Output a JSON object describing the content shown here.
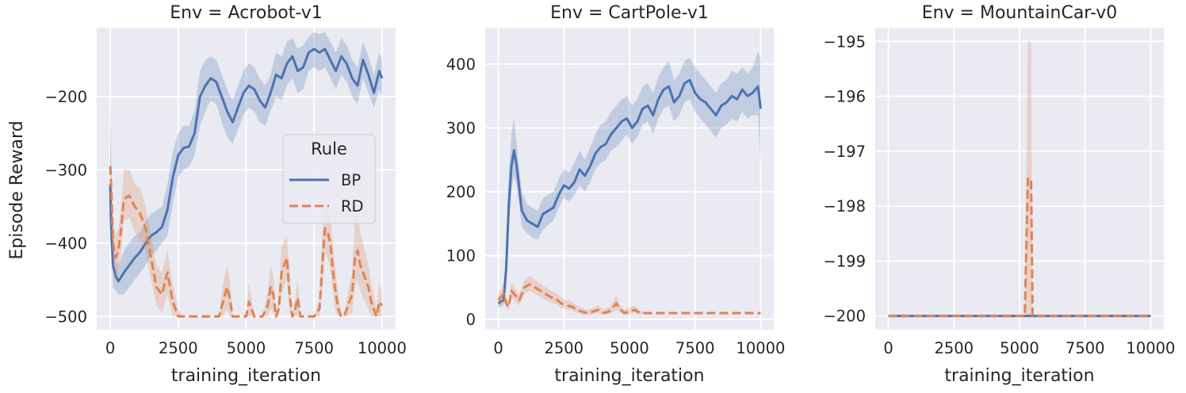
{
  "colors": {
    "panel_bg": "#EAEAF2",
    "grid": "#FFFFFF",
    "BP": "#4C72B0",
    "RD": "#DD8452"
  },
  "ylabel": "Episode Reward",
  "xlabel": "training_iteration",
  "legend": {
    "title": "Rule",
    "items": [
      "BP",
      "RD"
    ]
  },
  "chart_data": [
    {
      "type": "line",
      "title": "Env = Acrobot-v1",
      "xlabel": "training_iteration",
      "ylabel": "Episode Reward",
      "xlim": [
        -500,
        10500
      ],
      "ylim": [
        -518,
        -106
      ],
      "xticks": [
        0,
        2500,
        5000,
        7500,
        10000
      ],
      "xtick_labels": [
        "0",
        "2500",
        "5000",
        "7500",
        "10000"
      ],
      "yticks": [
        -500,
        -400,
        -300,
        -200
      ],
      "ytick_labels": [
        "−500",
        "−400",
        "−300",
        "−200"
      ],
      "legend": "center-right",
      "series": [
        {
          "name": "BP",
          "style": "solid",
          "x": [
            0,
            20,
            50,
            100,
            200,
            300,
            500,
            700,
            900,
            1100,
            1300,
            1500,
            1700,
            1900,
            2100,
            2300,
            2500,
            2700,
            2900,
            3100,
            3300,
            3500,
            3700,
            3900,
            4100,
            4300,
            4500,
            4700,
            4900,
            5100,
            5300,
            5500,
            5700,
            5900,
            6100,
            6300,
            6500,
            6700,
            6900,
            7100,
            7300,
            7500,
            7700,
            7900,
            8100,
            8300,
            8500,
            8700,
            8900,
            9100,
            9300,
            9500,
            9700,
            9900,
            10000
          ],
          "y": [
            -320,
            -360,
            -395,
            -430,
            -445,
            -452,
            -440,
            -430,
            -420,
            -412,
            -400,
            -390,
            -385,
            -378,
            -355,
            -310,
            -280,
            -270,
            -268,
            -250,
            -200,
            -185,
            -175,
            -180,
            -200,
            -220,
            -235,
            -215,
            -195,
            -185,
            -190,
            -205,
            -215,
            -195,
            -170,
            -175,
            -155,
            -145,
            -165,
            -160,
            -140,
            -135,
            -140,
            -135,
            -150,
            -165,
            -145,
            -155,
            -175,
            -185,
            -150,
            -170,
            -195,
            -165,
            -175
          ],
          "lower": [
            -360,
            -400,
            -430,
            -460,
            -465,
            -470,
            -470,
            -460,
            -450,
            -440,
            -430,
            -418,
            -410,
            -400,
            -390,
            -345,
            -310,
            -300,
            -295,
            -280,
            -240,
            -220,
            -205,
            -210,
            -235,
            -255,
            -265,
            -245,
            -225,
            -215,
            -220,
            -235,
            -240,
            -220,
            -200,
            -205,
            -185,
            -175,
            -195,
            -190,
            -165,
            -160,
            -165,
            -160,
            -175,
            -190,
            -170,
            -180,
            -200,
            -210,
            -175,
            -195,
            -215,
            -190,
            -200
          ],
          "upper": [
            -190,
            -260,
            -320,
            -390,
            -425,
            -430,
            -410,
            -400,
            -390,
            -385,
            -370,
            -360,
            -355,
            -350,
            -320,
            -275,
            -250,
            -240,
            -240,
            -220,
            -165,
            -150,
            -145,
            -150,
            -170,
            -190,
            -205,
            -185,
            -165,
            -155,
            -160,
            -175,
            -185,
            -170,
            -140,
            -145,
            -125,
            -120,
            -135,
            -130,
            -118,
            -112,
            -115,
            -112,
            -125,
            -140,
            -120,
            -130,
            -150,
            -160,
            -125,
            -145,
            -170,
            -140,
            -150
          ]
        },
        {
          "name": "RD",
          "style": "dashed",
          "x": [
            0,
            20,
            50,
            100,
            200,
            300,
            400,
            500,
            700,
            900,
            1100,
            1300,
            1500,
            1700,
            1900,
            2100,
            2300,
            2500,
            2700,
            3000,
            3500,
            4000,
            4150,
            4300,
            4400,
            4500,
            5000,
            5100,
            5200,
            5300,
            5400,
            5600,
            5800,
            5900,
            6000,
            6100,
            6200,
            6300,
            6500,
            6600,
            6700,
            6800,
            6900,
            7000,
            7500,
            7700,
            7800,
            7900,
            8000,
            8100,
            8200,
            8300,
            8400,
            8500,
            8600,
            8700,
            8900,
            9000,
            9100,
            9200,
            9300,
            9400,
            9500,
            9600,
            9700,
            9800,
            9900,
            10000
          ],
          "y": [
            -295,
            -310,
            -340,
            -400,
            -420,
            -410,
            -380,
            -340,
            -335,
            -350,
            -360,
            -380,
            -420,
            -460,
            -470,
            -440,
            -480,
            -500,
            -500,
            -500,
            -500,
            -500,
            -480,
            -460,
            -475,
            -500,
            -500,
            -480,
            -490,
            -500,
            -500,
            -500,
            -485,
            -460,
            -470,
            -500,
            -490,
            -440,
            -420,
            -470,
            -500,
            -490,
            -475,
            -500,
            -500,
            -490,
            -430,
            -380,
            -385,
            -400,
            -440,
            -470,
            -490,
            -500,
            -500,
            -490,
            -470,
            -420,
            -410,
            -430,
            -440,
            -450,
            -460,
            -480,
            -490,
            -500,
            -480,
            -485
          ],
          "lower": [
            -320,
            -340,
            -370,
            -430,
            -450,
            -440,
            -410,
            -370,
            -365,
            -385,
            -395,
            -410,
            -450,
            -485,
            -495,
            -470,
            -500,
            -500,
            -500,
            -500,
            -500,
            -500,
            -500,
            -490,
            -500,
            -500,
            -500,
            -500,
            -500,
            -500,
            -500,
            -500,
            -500,
            -490,
            -495,
            -500,
            -500,
            -470,
            -450,
            -495,
            -500,
            -500,
            -500,
            -500,
            -500,
            -500,
            -465,
            -415,
            -420,
            -435,
            -470,
            -495,
            -500,
            -500,
            -500,
            -500,
            -495,
            -460,
            -450,
            -465,
            -475,
            -480,
            -490,
            -500,
            -500,
            -500,
            -500,
            -500
          ],
          "upper": [
            -220,
            -260,
            -300,
            -370,
            -390,
            -380,
            -350,
            -300,
            -300,
            -320,
            -325,
            -350,
            -390,
            -430,
            -440,
            -410,
            -455,
            -490,
            -500,
            -500,
            -500,
            -500,
            -455,
            -430,
            -450,
            -500,
            -500,
            -455,
            -475,
            -500,
            -500,
            -500,
            -465,
            -430,
            -445,
            -500,
            -475,
            -405,
            -390,
            -440,
            -500,
            -475,
            -450,
            -500,
            -500,
            -475,
            -390,
            -345,
            -350,
            -365,
            -405,
            -440,
            -470,
            -500,
            -500,
            -475,
            -440,
            -370,
            -360,
            -385,
            -400,
            -415,
            -430,
            -455,
            -470,
            -490,
            -455,
            -465
          ]
        }
      ]
    },
    {
      "type": "line",
      "title": "Env = CartPole-v1",
      "xlabel": "training_iteration",
      "ylabel": "",
      "xlim": [
        -500,
        10500
      ],
      "ylim": [
        -16,
        457
      ],
      "xticks": [
        0,
        2500,
        5000,
        7500,
        10000
      ],
      "xtick_labels": [
        "0",
        "2500",
        "5000",
        "7500",
        "10000"
      ],
      "yticks": [
        0,
        100,
        200,
        300,
        400
      ],
      "ytick_labels": [
        "0",
        "100",
        "200",
        "300",
        "400"
      ],
      "series": [
        {
          "name": "BP",
          "style": "solid",
          "x": [
            0,
            100,
            200,
            300,
            400,
            500,
            600,
            700,
            900,
            1100,
            1300,
            1500,
            1700,
            1900,
            2100,
            2300,
            2500,
            2700,
            2900,
            3100,
            3300,
            3500,
            3700,
            3900,
            4100,
            4300,
            4500,
            4700,
            4900,
            5100,
            5300,
            5500,
            5700,
            5900,
            6100,
            6300,
            6500,
            6700,
            6900,
            7100,
            7300,
            7500,
            7700,
            7900,
            8100,
            8300,
            8500,
            8700,
            8900,
            9100,
            9300,
            9500,
            9700,
            9900,
            10000
          ],
          "y": [
            25,
            28,
            30,
            80,
            180,
            240,
            265,
            240,
            170,
            155,
            150,
            145,
            165,
            170,
            175,
            195,
            210,
            205,
            215,
            235,
            225,
            240,
            260,
            270,
            275,
            290,
            300,
            310,
            315,
            300,
            310,
            330,
            335,
            320,
            345,
            360,
            365,
            340,
            350,
            370,
            375,
            355,
            345,
            340,
            330,
            320,
            335,
            340,
            350,
            345,
            360,
            350,
            355,
            365,
            330
          ],
          "lower": [
            18,
            20,
            22,
            50,
            140,
            200,
            225,
            210,
            145,
            135,
            128,
            125,
            140,
            148,
            155,
            175,
            190,
            185,
            195,
            210,
            200,
            215,
            235,
            245,
            250,
            265,
            270,
            280,
            290,
            275,
            285,
            305,
            310,
            290,
            315,
            330,
            335,
            310,
            320,
            340,
            345,
            325,
            315,
            305,
            295,
            285,
            300,
            305,
            315,
            310,
            325,
            315,
            320,
            320,
            240
          ],
          "upper": [
            35,
            38,
            40,
            120,
            230,
            290,
            315,
            275,
            200,
            180,
            175,
            170,
            190,
            195,
            200,
            220,
            235,
            230,
            245,
            265,
            250,
            270,
            290,
            305,
            310,
            325,
            335,
            345,
            350,
            335,
            345,
            365,
            370,
            355,
            380,
            395,
            405,
            375,
            385,
            405,
            410,
            395,
            385,
            375,
            365,
            355,
            370,
            375,
            390,
            385,
            395,
            385,
            395,
            420,
            410
          ]
        },
        {
          "name": "RD",
          "style": "dashed",
          "x": [
            0,
            100,
            200,
            300,
            400,
            500,
            600,
            700,
            800,
            1000,
            1200,
            1400,
            1600,
            1800,
            2000,
            2200,
            2400,
            2600,
            2800,
            3000,
            3200,
            3400,
            3600,
            3800,
            4000,
            4200,
            4400,
            4500,
            4600,
            4800,
            5000,
            5200,
            5400,
            5600,
            6000,
            7000,
            8000,
            9000,
            10000
          ],
          "y": [
            30,
            35,
            40,
            25,
            20,
            45,
            40,
            35,
            30,
            50,
            55,
            50,
            45,
            40,
            35,
            32,
            25,
            22,
            20,
            15,
            12,
            10,
            12,
            15,
            10,
            12,
            20,
            25,
            18,
            10,
            12,
            15,
            10,
            10,
            10,
            10,
            10,
            10,
            10
          ],
          "lower": [
            20,
            25,
            30,
            18,
            15,
            35,
            30,
            25,
            22,
            40,
            45,
            40,
            35,
            30,
            27,
            24,
            18,
            16,
            14,
            10,
            8,
            7,
            8,
            10,
            7,
            8,
            12,
            15,
            12,
            7,
            8,
            10,
            8,
            9,
            10,
            10,
            10,
            10,
            10
          ],
          "upper": [
            40,
            48,
            55,
            35,
            28,
            58,
            52,
            45,
            40,
            62,
            68,
            62,
            56,
            50,
            45,
            42,
            34,
            30,
            28,
            22,
            18,
            15,
            18,
            22,
            15,
            18,
            30,
            38,
            26,
            15,
            18,
            22,
            14,
            11,
            10,
            10,
            10,
            10,
            10
          ]
        }
      ]
    },
    {
      "type": "line",
      "title": "Env = MountainCar-v0",
      "xlabel": "training_iteration",
      "ylabel": "",
      "xlim": [
        -500,
        10500
      ],
      "ylim": [
        -200.25,
        -194.75
      ],
      "xticks": [
        0,
        2500,
        5000,
        7500,
        10000
      ],
      "xtick_labels": [
        "0",
        "2500",
        "5000",
        "7500",
        "10000"
      ],
      "yticks": [
        -200,
        -199,
        -198,
        -197,
        -196,
        -195
      ],
      "ytick_labels": [
        "−200",
        "−199",
        "−198",
        "−197",
        "−196",
        "−195"
      ],
      "series": [
        {
          "name": "BP",
          "style": "solid",
          "x": [
            0,
            10000
          ],
          "y": [
            -200,
            -200
          ],
          "lower": [
            -200,
            -200
          ],
          "upper": [
            -200,
            -200
          ]
        },
        {
          "name": "RD",
          "style": "dashed",
          "x": [
            0,
            5200,
            5320,
            5380,
            5440,
            5500,
            10000
          ],
          "y": [
            -200,
            -200,
            -197.5,
            -197.5,
            -197.5,
            -200,
            -200
          ],
          "lower": [
            -200,
            -200,
            -200,
            -200,
            -200,
            -200,
            -200
          ],
          "upper": [
            -200,
            -200,
            -195,
            -195,
            -195,
            -200,
            -200
          ]
        }
      ]
    }
  ]
}
